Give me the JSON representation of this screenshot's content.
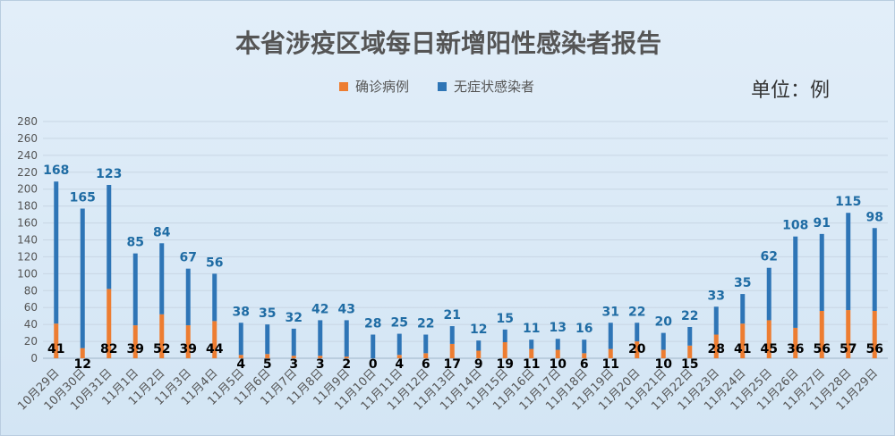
{
  "colors": {
    "confirmed": "#ed7d31",
    "asymptomatic": "#2e75b6",
    "gridline": "#c8d6e4"
  },
  "chart_data": {
    "type": "bar",
    "stacked": true,
    "title": "本省涉疫区域每日新增阳性感染者报告",
    "unit_note": "单位：例",
    "legend_position": "top",
    "grid": true,
    "ylim": [
      0,
      280
    ],
    "yticks": [
      0,
      20,
      40,
      60,
      80,
      100,
      120,
      140,
      160,
      180,
      200,
      220,
      240,
      260,
      280
    ],
    "categories": [
      "10月29日",
      "10月30日",
      "10月31日",
      "11月1日",
      "11月2日",
      "11月3日",
      "11月4日",
      "11月5日",
      "11月6日",
      "11月7日",
      "11月8日",
      "11月9日",
      "11月10日",
      "11月11日",
      "11月12日",
      "11月13日",
      "11月14日",
      "11月15日",
      "11月16日",
      "11月17日",
      "11月18日",
      "11月19日",
      "11月20日",
      "11月21日",
      "11月22日",
      "11月23日",
      "11月24日",
      "11月25日",
      "11月26日",
      "11月27日",
      "11月28日",
      "11月29日"
    ],
    "series": [
      {
        "name": "确诊病例",
        "values": [
          41,
          12,
          82,
          39,
          52,
          39,
          44,
          4,
          5,
          3,
          3,
          2,
          0,
          4,
          6,
          17,
          9,
          19,
          11,
          10,
          6,
          11,
          20,
          10,
          15,
          28,
          41,
          45,
          36,
          56,
          57,
          56
        ]
      },
      {
        "name": "无症状感染者",
        "values": [
          168,
          165,
          123,
          85,
          84,
          67,
          56,
          38,
          35,
          32,
          42,
          43,
          28,
          25,
          22,
          21,
          12,
          15,
          11,
          13,
          16,
          31,
          22,
          20,
          22,
          33,
          35,
          62,
          108,
          91,
          115,
          98
        ]
      }
    ]
  }
}
